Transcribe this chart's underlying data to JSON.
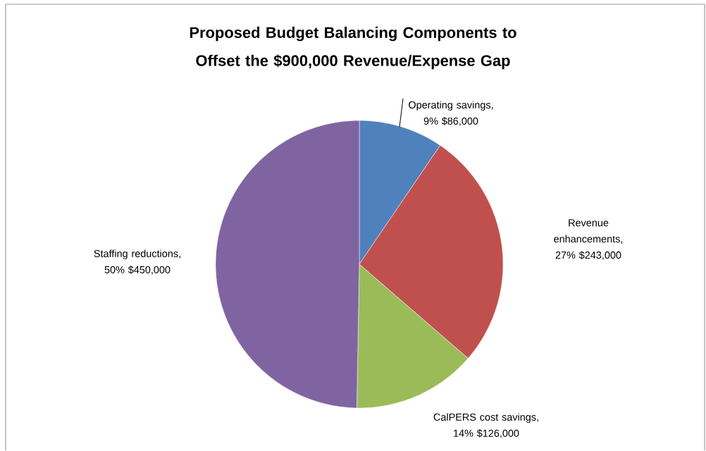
{
  "chart_data": {
    "type": "pie",
    "title": "Proposed Budget Balancing Components to Offset the $900,000 Revenue/Expense Gap",
    "categories": [
      "Operating savings",
      "Revenue enhancements",
      "CalPERS cost savings",
      "Staffing reductions"
    ],
    "values": [
      86000,
      243000,
      126000,
      450000
    ],
    "colors": [
      "#4f81bd",
      "#c0504d",
      "#9bbb59",
      "#8064a2"
    ],
    "value_labels": [
      ", 9% $86,000",
      ", 27% $243,000",
      ", 14% $126,000",
      ", 50% $450,000"
    ],
    "legend": false
  }
}
